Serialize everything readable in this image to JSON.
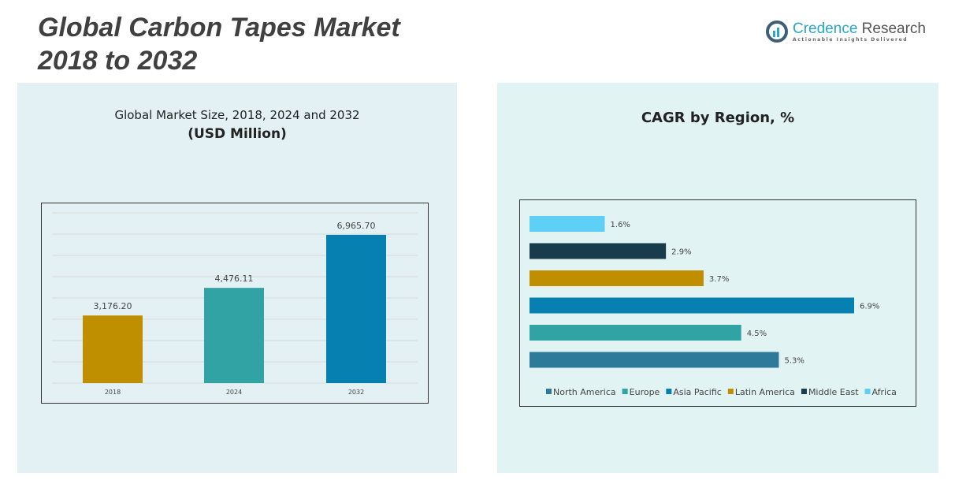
{
  "title_line1": "Global Carbon Tapes Market",
  "title_line2": "2018 to 2032",
  "logo": {
    "name_a": "Credence",
    "name_b": " Research",
    "tagline": "Actionable Insights Delivered"
  },
  "chart_data": [
    {
      "type": "bar",
      "title": "Global Market Size, 2018, 2024 and 2032",
      "subtitle": "(USD Million)",
      "categories": [
        "2018",
        "2024",
        "2032"
      ],
      "values": [
        3176.2,
        4476.11,
        6965.7
      ],
      "value_labels": [
        "3,176.20",
        "4,476.11",
        "6,965.70"
      ],
      "colors": [
        "#c08f00",
        "#31a3a5",
        "#0580b0"
      ],
      "ylim": [
        0,
        8000
      ],
      "grid": true
    },
    {
      "type": "bar",
      "orientation": "horizontal",
      "title": "CAGR by Region, %",
      "categories": [
        "Africa",
        "Middle East",
        "Latin America",
        "Asia Pacific",
        "Europe",
        "North America"
      ],
      "values": [
        1.6,
        2.9,
        3.7,
        6.9,
        4.5,
        5.3
      ],
      "value_labels": [
        "1.6%",
        "2.9%",
        "3.7%",
        "6.9%",
        "4.5%",
        "5.3%"
      ],
      "colors": [
        "#5fd0f5",
        "#183c4c",
        "#c08f00",
        "#0580b0",
        "#31a3a5",
        "#2e7a9a"
      ],
      "legend": [
        "North America",
        "Europe",
        "Asia Pacific",
        "Latin America",
        "Middle East",
        "Africa"
      ],
      "legend_colors": [
        "#2e7a9a",
        "#31a3a5",
        "#0580b0",
        "#c08f00",
        "#183c4c",
        "#5fd0f5"
      ],
      "legend_position": "bottom"
    }
  ]
}
